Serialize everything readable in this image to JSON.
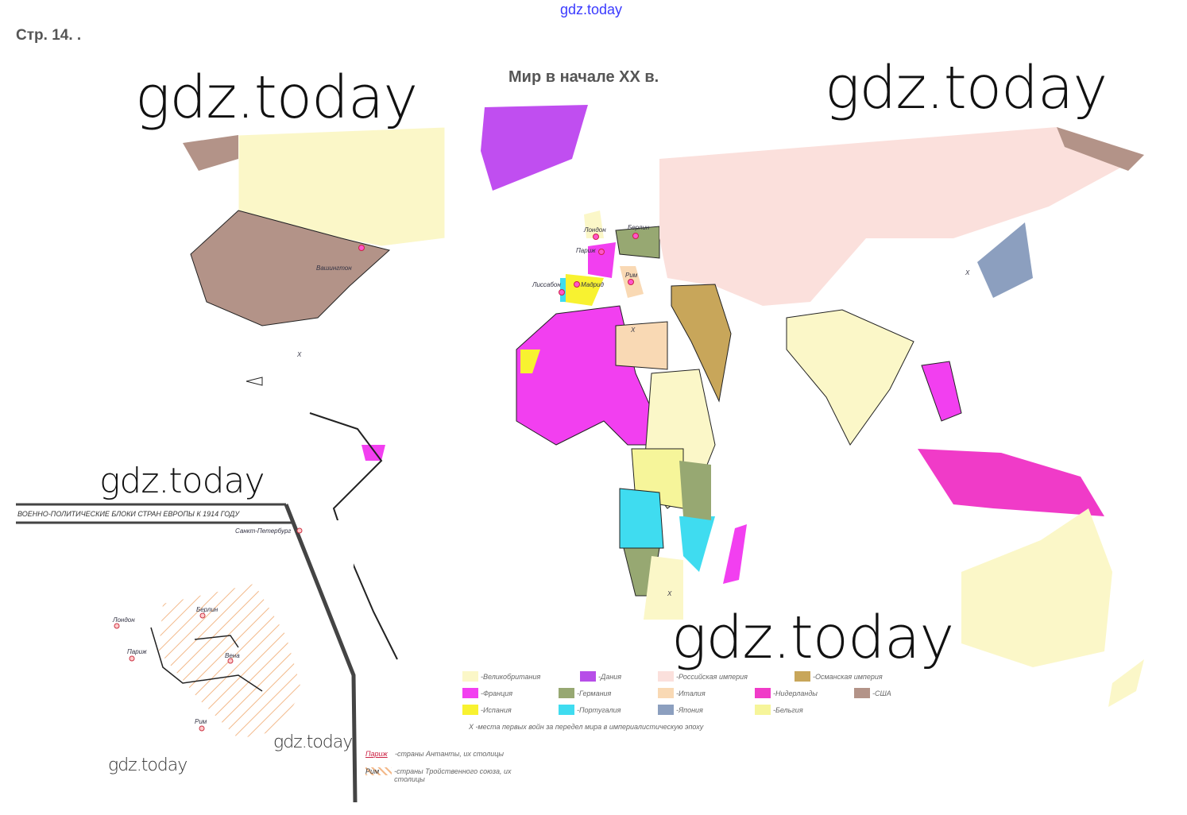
{
  "header": {
    "page_label": "Стр. 14. .",
    "top_watermark": "gdz.today"
  },
  "map": {
    "title": "Мир в начале XX в.",
    "watermarks": [
      "gdz.today",
      "gdz.today",
      "gdz.today",
      "gdz.today",
      "gdz.today",
      "gdz.today"
    ],
    "cities": {
      "london": "Лондон",
      "berlin": "Берлин",
      "paris": "Париж",
      "rome": "Рим",
      "madrid": "Мадрид",
      "lisbon": "Лиссабон",
      "washington": "Вашингтон"
    },
    "war_marker": "X",
    "legend": [
      {
        "label": "-Великобритания",
        "color": "#fbf7c8"
      },
      {
        "label": "-Дания",
        "color": "#b74ee8"
      },
      {
        "label": "-Российская империя",
        "color": "#fbe0dc"
      },
      {
        "label": "-Османская империя",
        "color": "#c8a65a"
      },
      {
        "label": "-Франция",
        "color": "#f23ff0"
      },
      {
        "label": "-Германия",
        "color": "#97a872"
      },
      {
        "label": "-Италия",
        "color": "#f9d9b4"
      },
      {
        "label": "-Нидерланды",
        "color": "#f03bc8"
      },
      {
        "label": "-США",
        "color": "#b39388"
      },
      {
        "label": "-Испания",
        "color": "#f8f230"
      },
      {
        "label": "-Португалия",
        "color": "#3fdcf0"
      },
      {
        "label": "-Япония",
        "color": "#8c9fbf"
      },
      {
        "label": "-Бельгия",
        "color": "#f6f59a"
      }
    ],
    "war_note": "X -места первых войн за передел мира в империалистическую эпоху"
  },
  "inset": {
    "title": "ВОЕННО-ПОЛИТИЧЕСКИЕ БЛОКИ СТРАН ЕВРОПЫ К 1914 ГОДУ",
    "cities": {
      "stpetersburg": "Санкт-Петербург",
      "london": "Лондон",
      "berlin": "Берлин",
      "paris": "Париж",
      "vienna": "Вена",
      "rome": "Рим"
    },
    "legend": [
      {
        "sample": "Париж",
        "label": "-страны Антанты, их столицы"
      },
      {
        "sample": "Рим",
        "label": "-страны Тройственного союза, их столицы"
      }
    ]
  }
}
